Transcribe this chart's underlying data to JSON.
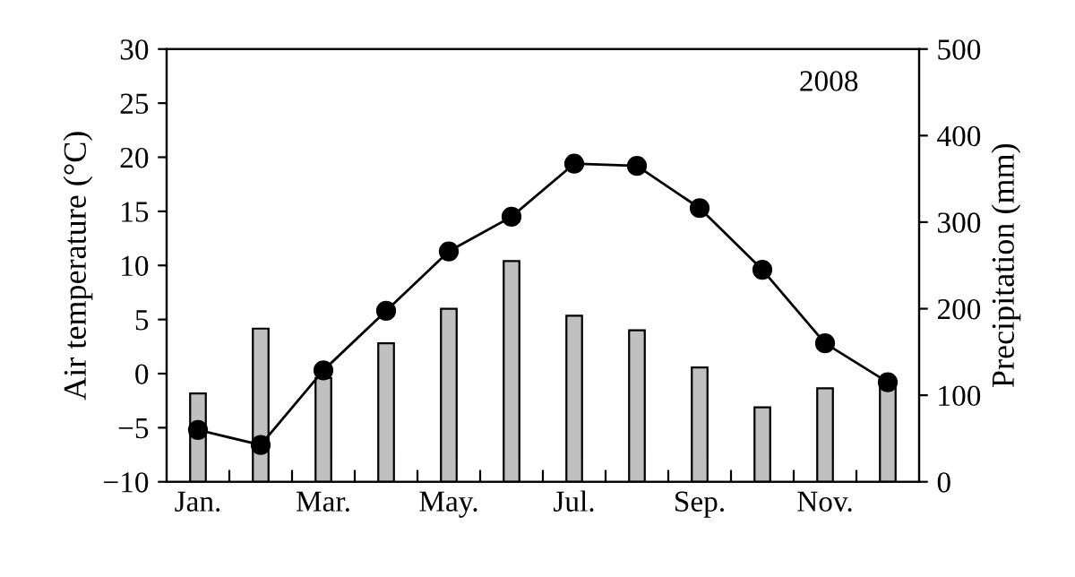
{
  "chart_data": {
    "type": "bar",
    "ylabel": "Air temperature (°C)",
    "y2label": "Precipitation (mm)",
    "annotations": [
      "2008"
    ],
    "categories": [
      "Jan.",
      null,
      "Mar.",
      null,
      "May.",
      null,
      "Jul.",
      null,
      "Sep.",
      null,
      "Nov.",
      null
    ],
    "series": [
      {
        "axis": "y2",
        "color": "#c0c0c0",
        "values": [
          102,
          177,
          120,
          160,
          200,
          255,
          192,
          175,
          132,
          86,
          108,
          112
        ]
      },
      {
        "type": "line",
        "axis": "y",
        "color": "#000000",
        "marker": "circle",
        "values": [
          -5.2,
          -6.6,
          0.3,
          5.8,
          11.3,
          14.5,
          19.4,
          19.2,
          15.3,
          9.6,
          2.8,
          -0.8
        ]
      }
    ],
    "ylim": [
      -10,
      30
    ],
    "yticks": [
      -10,
      -5,
      0,
      5,
      10,
      15,
      20,
      25,
      30
    ],
    "y2lim": [
      0,
      500
    ],
    "y2ticks": [
      0,
      100,
      200,
      300,
      400,
      500
    ],
    "grid": false,
    "legend": false
  }
}
